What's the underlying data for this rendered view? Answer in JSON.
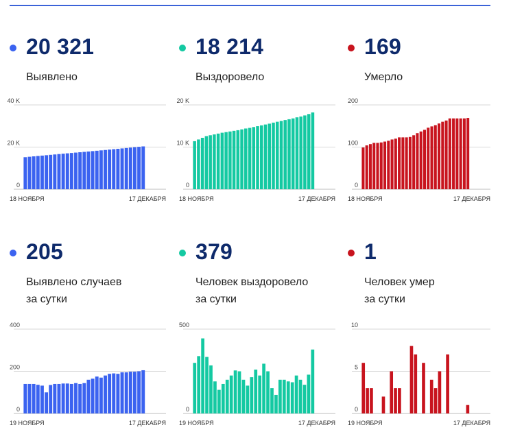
{
  "colors": {
    "blue": "#3b63f0",
    "teal": "#14c9a2",
    "red": "#c8141e",
    "number": "#0e2a6b"
  },
  "panels": [
    {
      "value": "20 321",
      "label_lines": [
        "Выявлено"
      ],
      "color_key": "blue"
    },
    {
      "value": "18 214",
      "label_lines": [
        "Выздоровело"
      ],
      "color_key": "teal"
    },
    {
      "value": "169",
      "label_lines": [
        "Умерло"
      ],
      "color_key": "red"
    },
    {
      "value": "205",
      "label_lines": [
        "Выявлено случаев",
        "за сутки"
      ],
      "color_key": "blue"
    },
    {
      "value": "379",
      "label_lines": [
        "Человек выздоровело",
        "за сутки"
      ],
      "color_key": "teal"
    },
    {
      "value": "1",
      "label_lines": [
        "Человек умер",
        "за сутки"
      ],
      "color_key": "red"
    }
  ],
  "chart_data": [
    {
      "type": "bar",
      "title": "Выявлено",
      "color_key": "blue",
      "x_start_label": "18 НОЯБРЯ",
      "x_end_label": "17 ДЕКАБРЯ",
      "ylim": [
        0,
        40000
      ],
      "y_ticks": [
        {
          "value": 0,
          "label": "0"
        },
        {
          "value": 20000,
          "label": "20 K"
        },
        {
          "value": 40000,
          "label": "40 K"
        }
      ],
      "values": [
        15200,
        15410,
        15600,
        15780,
        15960,
        16140,
        16320,
        16500,
        16690,
        16860,
        17030,
        17200,
        17380,
        17550,
        17720,
        17900,
        18080,
        18260,
        18440,
        18620,
        18810,
        19000,
        19180,
        19370,
        19560,
        19750,
        19940,
        20120,
        20321
      ]
    },
    {
      "type": "bar",
      "title": "Выздоровело",
      "color_key": "teal",
      "x_start_label": "18 НОЯБРЯ",
      "x_end_label": "17 ДЕКАБРЯ",
      "ylim": [
        0,
        20000
      ],
      "y_ticks": [
        {
          "value": 0,
          "label": "0"
        },
        {
          "value": 10000,
          "label": "10 K"
        },
        {
          "value": 20000,
          "label": "20 K"
        }
      ],
      "values": [
        11400,
        11800,
        12200,
        12600,
        12800,
        13000,
        13200,
        13400,
        13550,
        13700,
        13850,
        14000,
        14200,
        14400,
        14550,
        14750,
        14950,
        15150,
        15350,
        15550,
        15800,
        16000,
        16200,
        16400,
        16600,
        16800,
        17050,
        17250,
        17500,
        17835,
        18214
      ]
    },
    {
      "type": "bar",
      "title": "Умерло",
      "color_key": "red",
      "x_start_label": "18 НОЯБРЯ",
      "x_end_label": "17 ДЕКАБРЯ",
      "ylim": [
        0,
        200
      ],
      "y_ticks": [
        {
          "value": 0,
          "label": "0"
        },
        {
          "value": 100,
          "label": "100"
        },
        {
          "value": 200,
          "label": "200"
        }
      ],
      "values": [
        99,
        104,
        107,
        110,
        110,
        111,
        113,
        115,
        118,
        120,
        123,
        123,
        123,
        124,
        128,
        133,
        137,
        141,
        146,
        149,
        152,
        156,
        160,
        163,
        168,
        168,
        168,
        168,
        168,
        169
      ]
    },
    {
      "type": "bar",
      "title": "Выявлено случаев за сутки",
      "color_key": "blue",
      "x_start_label": "19 НОЯБРЯ",
      "x_end_label": "17 ДЕКАБРЯ",
      "ylim": [
        0,
        400
      ],
      "y_ticks": [
        {
          "value": 0,
          "label": "0"
        },
        {
          "value": 200,
          "label": "200"
        },
        {
          "value": 400,
          "label": "400"
        }
      ],
      "values": [
        140,
        140,
        140,
        136,
        132,
        100,
        135,
        140,
        140,
        142,
        142,
        140,
        144,
        140,
        144,
        160,
        165,
        175,
        170,
        180,
        188,
        190,
        188,
        195,
        195,
        198,
        198,
        200,
        205
      ]
    },
    {
      "type": "bar",
      "title": "Человек выздоровело за сутки",
      "color_key": "teal",
      "x_start_label": "19 НОЯБРЯ",
      "x_end_label": "17 ДЕКАБРЯ",
      "ylim": [
        0,
        500
      ],
      "y_ticks": [
        {
          "value": 0,
          "label": "0"
        },
        {
          "value": 500,
          "label": "500"
        }
      ],
      "values": [
        300,
        340,
        445,
        335,
        285,
        190,
        140,
        175,
        200,
        225,
        255,
        250,
        200,
        165,
        215,
        260,
        225,
        295,
        250,
        150,
        110,
        200,
        200,
        190,
        185,
        225,
        200,
        170,
        230,
        379
      ]
    },
    {
      "type": "bar",
      "title": "Человек умер за сутки",
      "color_key": "red",
      "x_start_label": "19 НОЯБРЯ",
      "x_end_label": "17 ДЕКАБРЯ",
      "ylim": [
        0,
        10
      ],
      "y_ticks": [
        {
          "value": 0,
          "label": "0"
        },
        {
          "value": 5,
          "label": "5"
        },
        {
          "value": 10,
          "label": "10"
        }
      ],
      "values": [
        6,
        3,
        3,
        0,
        0,
        2,
        0,
        5,
        3,
        3,
        0,
        0,
        8,
        7,
        0,
        6,
        0,
        4,
        3,
        5,
        0,
        7,
        0,
        0,
        0,
        0,
        1
      ]
    }
  ]
}
